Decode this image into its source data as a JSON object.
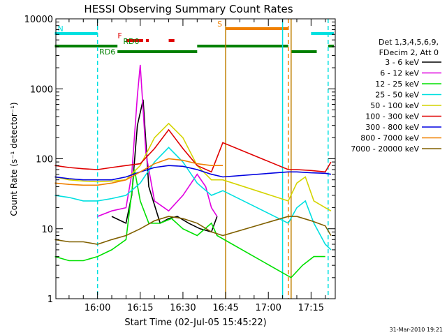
{
  "chart_data": {
    "type": "line",
    "title": "HESSI Observing Summary Count Rates",
    "xlabel": "Start Time (02-Jul-05 15:45:22)",
    "ylabel": "Count Rate (s⁻¹ detector⁻¹)",
    "y_scale": "log",
    "ylim": [
      1,
      10000
    ],
    "xlim": [
      "15:45:22",
      "17:23:30"
    ],
    "x_ticks": [
      "16:00",
      "16:15",
      "16:30",
      "16:45",
      "17:00",
      "17:15"
    ],
    "y_ticks": [
      "1",
      "10",
      "100",
      "1000",
      "10000"
    ],
    "grid": false,
    "legend_placement": "right, outside plot",
    "legend_title": [
      "Det 1,3,4,5,6,9,",
      "FDecim 2, Att 0"
    ],
    "footer_date": "31-Mar-2010 19:21",
    "series": [
      {
        "name": "3 - 6 keV",
        "color": "#000000",
        "x": [
          "15:45",
          "16:00",
          "16:05",
          "16:10",
          "16:12",
          "16:14",
          "16:16",
          "16:18",
          "16:22",
          "16:25",
          "16:28",
          "16:32",
          "16:36",
          "16:40",
          "16:42"
        ],
        "values": [
          null,
          null,
          15,
          12,
          30,
          300,
          700,
          40,
          12,
          14,
          15,
          12,
          10,
          9,
          15
        ]
      },
      {
        "name": "6 - 12 keV",
        "color": "#e000e0",
        "x": [
          "16:00",
          "16:05",
          "16:10",
          "16:12",
          "16:14",
          "16:15",
          "16:17",
          "16:20",
          "16:25",
          "16:30",
          "16:35",
          "16:38",
          "16:40",
          "16:42"
        ],
        "values": [
          15,
          18,
          20,
          60,
          800,
          2200,
          120,
          25,
          18,
          30,
          60,
          40,
          20,
          15
        ]
      },
      {
        "name": "12 - 25 keV",
        "color": "#00e000",
        "x": [
          "15:45",
          "15:50",
          "15:55",
          "16:00",
          "16:05",
          "16:10",
          "16:13",
          "16:15",
          "16:18",
          "16:22",
          "16:26",
          "16:30",
          "16:35",
          "16:40",
          "16:42",
          "17:08",
          "17:12",
          "17:16",
          "17:20"
        ],
        "values": [
          4,
          3.5,
          3.5,
          4,
          5,
          7,
          70,
          25,
          12,
          12,
          14,
          10,
          8,
          12,
          8,
          2,
          3,
          4,
          4
        ]
      },
      {
        "name": "25 - 50 keV",
        "color": "#00e0e0",
        "x": [
          "15:45",
          "15:50",
          "15:55",
          "16:00",
          "16:05",
          "16:10",
          "16:15",
          "16:20",
          "16:25",
          "16:30",
          "16:35",
          "16:40",
          "16:44",
          "17:07",
          "17:10",
          "17:13",
          "17:16",
          "17:20",
          "17:22"
        ],
        "values": [
          30,
          28,
          25,
          25,
          27,
          30,
          45,
          90,
          145,
          90,
          45,
          30,
          35,
          12,
          20,
          25,
          12,
          6,
          5
        ]
      },
      {
        "name": "50 - 100 keV",
        "color": "#d4d400",
        "x": [
          "15:45",
          "15:50",
          "15:55",
          "16:00",
          "16:05",
          "16:10",
          "16:15",
          "16:20",
          "16:25",
          "16:30",
          "16:35",
          "16:40",
          "16:44",
          "17:07",
          "17:10",
          "17:13",
          "17:16",
          "17:20",
          "17:22"
        ],
        "values": [
          55,
          50,
          48,
          47,
          48,
          50,
          80,
          200,
          320,
          200,
          80,
          50,
          50,
          25,
          45,
          55,
          25,
          20,
          18
        ]
      },
      {
        "name": "100 - 300 keV",
        "color": "#e00000",
        "x": [
          "15:45",
          "15:50",
          "15:55",
          "16:00",
          "16:05",
          "16:10",
          "16:15",
          "16:20",
          "16:25",
          "16:30",
          "16:35",
          "16:40",
          "16:44",
          "17:07",
          "17:10",
          "17:15",
          "17:20",
          "17:22"
        ],
        "values": [
          80,
          75,
          72,
          70,
          75,
          80,
          85,
          140,
          260,
          140,
          80,
          65,
          170,
          70,
          70,
          68,
          65,
          90
        ]
      },
      {
        "name": "300 - 800 keV",
        "color": "#0000e0",
        "x": [
          "15:45",
          "15:50",
          "15:55",
          "16:00",
          "16:05",
          "16:10",
          "16:15",
          "16:20",
          "16:25",
          "16:30",
          "16:35",
          "16:40",
          "16:44",
          "17:07",
          "17:10",
          "17:15",
          "17:20",
          "17:22"
        ],
        "values": [
          55,
          52,
          50,
          50,
          50,
          55,
          65,
          75,
          80,
          78,
          70,
          60,
          55,
          65,
          65,
          63,
          62,
          60
        ]
      },
      {
        "name": "800 - 7000 keV",
        "color": "#f08000",
        "x": [
          "15:45",
          "15:50",
          "15:55",
          "16:00",
          "16:05",
          "16:10",
          "16:15",
          "16:20",
          "16:25",
          "16:30",
          "16:35",
          "16:40",
          "16:44"
        ],
        "values": [
          45,
          43,
          42,
          42,
          45,
          50,
          65,
          85,
          100,
          95,
          85,
          80,
          80
        ]
      },
      {
        "name": "7000 - 20000 keV",
        "color": "#806000",
        "x": [
          "15:45",
          "15:50",
          "15:55",
          "16:00",
          "16:05",
          "16:10",
          "16:15",
          "16:20",
          "16:25",
          "16:30",
          "16:35",
          "16:40",
          "16:44",
          "17:07",
          "17:10",
          "17:15",
          "17:20",
          "17:22"
        ],
        "values": [
          7,
          6.5,
          6.5,
          6,
          7,
          8,
          10,
          13,
          15,
          14,
          12,
          9,
          8,
          15,
          15,
          13,
          11,
          8
        ]
      }
    ],
    "flag_bars": [
      {
        "label": "N",
        "color": "#00e0e0",
        "segments": [
          [
            "15:45",
            "16:00"
          ],
          [
            "17:15",
            "17:23"
          ]
        ]
      },
      {
        "label": "S",
        "color": "#f08000",
        "segments": [
          [
            "16:45",
            "17:07"
          ]
        ]
      },
      {
        "label": "F",
        "color": "#e00000",
        "segments": [
          [
            "16:10",
            "16:16"
          ],
          [
            "16:17",
            "16:18"
          ],
          [
            "16:25",
            "16:27"
          ]
        ]
      },
      {
        "label": "RD0",
        "color": "#008000",
        "segments": [
          [
            "15:45",
            "16:07"
          ],
          [
            "16:35",
            "17:07"
          ],
          [
            "17:21",
            "17:23"
          ]
        ]
      },
      {
        "label": "RD6",
        "color": "#008000",
        "segments": [
          [
            "16:07",
            "16:35"
          ],
          [
            "17:08",
            "17:17"
          ]
        ]
      }
    ],
    "markers": [
      {
        "time": "16:45",
        "color": "#c08000",
        "style": "solid"
      },
      {
        "time": "17:05",
        "color": "#00e0e0",
        "style": "solid"
      },
      {
        "time": "17:07",
        "color": "#f08000",
        "style": "dashed"
      },
      {
        "time": "17:08",
        "color": "#c08000",
        "style": "solid"
      },
      {
        "time": "16:00",
        "color": "#00e0e0",
        "style": "dashed"
      },
      {
        "time": "17:21",
        "color": "#00e0e0",
        "style": "dashed"
      }
    ]
  }
}
